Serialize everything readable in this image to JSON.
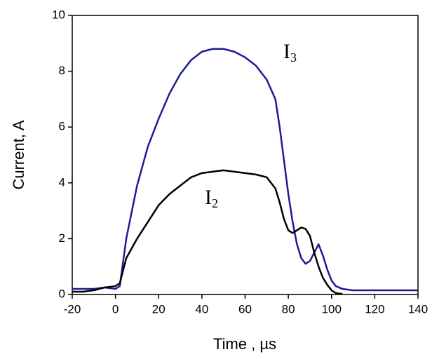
{
  "chart_data": {
    "type": "line",
    "x_label": "Time , µs",
    "y_label": "Current, A",
    "x": [
      -20,
      -15,
      -10,
      -5,
      0,
      2,
      5,
      10,
      15,
      20,
      25,
      30,
      35,
      40,
      45,
      50,
      55,
      60,
      65,
      70,
      74,
      76,
      78,
      80,
      82,
      84,
      86,
      88,
      90,
      92,
      94,
      96,
      98,
      100,
      102,
      105,
      110,
      120,
      130,
      140
    ],
    "series": [
      {
        "name": "I3",
        "color": "#1c1c96",
        "values": [
          0.2,
          0.2,
          0.2,
          0.25,
          0.2,
          0.3,
          2.0,
          3.9,
          5.3,
          6.3,
          7.2,
          7.9,
          8.4,
          8.7,
          8.8,
          8.8,
          8.7,
          8.5,
          8.2,
          7.7,
          7.0,
          6.0,
          4.8,
          3.6,
          2.6,
          1.8,
          1.3,
          1.1,
          1.2,
          1.5,
          1.8,
          1.4,
          0.9,
          0.5,
          0.3,
          0.2,
          0.15,
          0.15,
          0.15,
          0.15
        ]
      },
      {
        "name": "I2",
        "color": "#000000",
        "values": [
          0.1,
          0.1,
          0.15,
          0.25,
          0.3,
          0.4,
          1.3,
          2.0,
          2.6,
          3.2,
          3.6,
          3.9,
          4.2,
          4.35,
          4.4,
          4.45,
          4.4,
          4.35,
          4.3,
          4.2,
          3.8,
          3.3,
          2.7,
          2.3,
          2.2,
          2.3,
          2.4,
          2.35,
          2.1,
          1.5,
          1.0,
          0.6,
          0.35,
          0.15,
          0.05,
          0.02,
          null,
          null,
          null,
          null
        ]
      }
    ],
    "annotations": [
      {
        "text": "I",
        "subscript": "3"
      },
      {
        "text": "I",
        "subscript": "2"
      }
    ],
    "xlim": [
      -20,
      140
    ],
    "xticks": [
      -20,
      0,
      20,
      40,
      60,
      80,
      100,
      120,
      140
    ],
    "ylim": [
      0,
      10
    ],
    "yticks": [
      0,
      2,
      4,
      6,
      8,
      10
    ],
    "grid": false
  }
}
